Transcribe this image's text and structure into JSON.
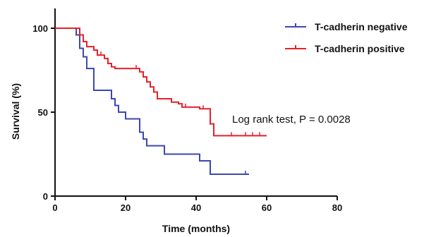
{
  "chart_data": {
    "type": "line",
    "title": "",
    "xlabel": "Time (months)",
    "ylabel": "Survival (%)",
    "xlim": [
      0,
      80
    ],
    "ylim": [
      0,
      100
    ],
    "xticks": [
      0,
      20,
      40,
      60,
      80
    ],
    "yticks": [
      0,
      50,
      100
    ],
    "x_tick_labels": [
      "0",
      "20",
      "40",
      "60",
      "80"
    ],
    "y_tick_labels": [
      "0",
      "50",
      "100"
    ],
    "grid": false,
    "legend_position": "top-right",
    "annotation": "Log rank test, P = 0.0028",
    "series": [
      {
        "name": "T-cadherin negative",
        "color": "#3b48b0",
        "step": true,
        "points": [
          [
            0,
            100
          ],
          [
            5,
            100
          ],
          [
            6,
            96
          ],
          [
            7,
            88
          ],
          [
            8,
            83
          ],
          [
            9,
            76
          ],
          [
            10,
            76
          ],
          [
            11,
            63
          ],
          [
            15,
            63
          ],
          [
            16,
            58
          ],
          [
            17,
            54
          ],
          [
            18,
            50
          ],
          [
            20,
            46
          ],
          [
            23,
            46
          ],
          [
            24,
            38
          ],
          [
            25,
            34
          ],
          [
            26,
            30
          ],
          [
            30,
            30
          ],
          [
            31,
            25
          ],
          [
            40,
            25
          ],
          [
            41,
            21
          ],
          [
            43,
            21
          ],
          [
            44,
            13
          ],
          [
            55,
            13
          ]
        ],
        "censored": [
          [
            54,
            13
          ]
        ]
      },
      {
        "name": "T-cadherin positive",
        "color": "#e8202a",
        "step": true,
        "points": [
          [
            0,
            100
          ],
          [
            6,
            100
          ],
          [
            7,
            96
          ],
          [
            8,
            92
          ],
          [
            9,
            89
          ],
          [
            11,
            87
          ],
          [
            12,
            84
          ],
          [
            14,
            82
          ],
          [
            15,
            79
          ],
          [
            16,
            77
          ],
          [
            17,
            76
          ],
          [
            23,
            76
          ],
          [
            24,
            74
          ],
          [
            25,
            71
          ],
          [
            26,
            68
          ],
          [
            27,
            65
          ],
          [
            28,
            62
          ],
          [
            29,
            58
          ],
          [
            32,
            58
          ],
          [
            33,
            56
          ],
          [
            35,
            55
          ],
          [
            36,
            53
          ],
          [
            40,
            53
          ],
          [
            41,
            52
          ],
          [
            43,
            52
          ],
          [
            44,
            43
          ],
          [
            45,
            36
          ],
          [
            60,
            36
          ]
        ],
        "censored": [
          [
            13,
            84
          ],
          [
            23,
            76
          ],
          [
            26,
            68
          ],
          [
            37,
            53
          ],
          [
            42,
            52
          ],
          [
            50,
            36
          ],
          [
            54,
            36
          ],
          [
            56,
            36
          ],
          [
            58,
            36
          ]
        ]
      }
    ]
  }
}
